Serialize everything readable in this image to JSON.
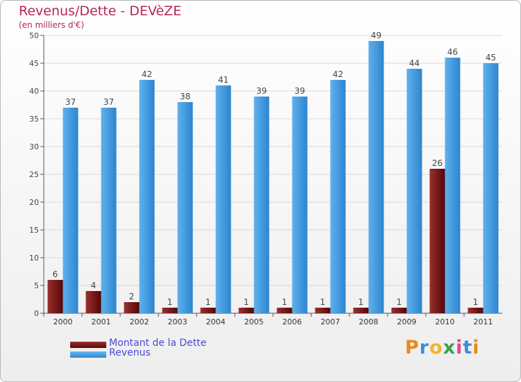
{
  "chart_data": {
    "type": "bar",
    "title": "Revenus/Dette - DEVèZE",
    "subtitle": "(en milliers d'€)",
    "categories": [
      "2000",
      "2001",
      "2002",
      "2003",
      "2004",
      "2005",
      "2006",
      "2007",
      "2008",
      "2009",
      "2010",
      "2011"
    ],
    "series": [
      {
        "name": "Montant de la Dette",
        "values": [
          6,
          4,
          2,
          1,
          1,
          1,
          1,
          1,
          1,
          1,
          26,
          1
        ],
        "color": "#7a1a1a"
      },
      {
        "name": "Revenus",
        "values": [
          37,
          37,
          42,
          38,
          41,
          39,
          39,
          42,
          49,
          44,
          46,
          45
        ],
        "color": "#4aa3e6"
      }
    ],
    "ylim": [
      0,
      50
    ],
    "yticks": [
      0,
      5,
      10,
      15,
      20,
      25,
      30,
      35,
      40,
      45,
      50
    ],
    "grid": true,
    "legend_position": "bottom-left",
    "logo_text": "Proxiti"
  }
}
